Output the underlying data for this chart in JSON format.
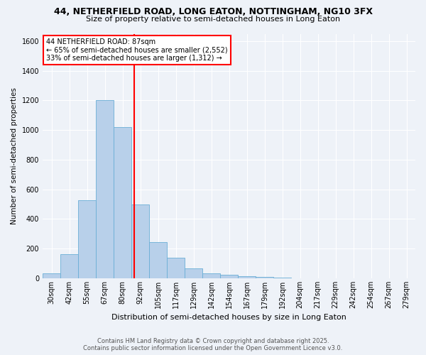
{
  "title_line1": "44, NETHERFIELD ROAD, LONG EATON, NOTTINGHAM, NG10 3FX",
  "title_line2": "Size of property relative to semi-detached houses in Long Eaton",
  "xlabel": "Distribution of semi-detached houses by size in Long Eaton",
  "ylabel": "Number of semi-detached properties",
  "categories": [
    "30sqm",
    "42sqm",
    "55sqm",
    "67sqm",
    "80sqm",
    "92sqm",
    "105sqm",
    "117sqm",
    "129sqm",
    "142sqm",
    "154sqm",
    "167sqm",
    "179sqm",
    "192sqm",
    "204sqm",
    "217sqm",
    "229sqm",
    "242sqm",
    "254sqm",
    "267sqm",
    "279sqm"
  ],
  "values": [
    35,
    165,
    525,
    1200,
    1020,
    500,
    245,
    140,
    65,
    35,
    25,
    15,
    8,
    3,
    1,
    1,
    0,
    0,
    0,
    0,
    0
  ],
  "bar_color": "#b8d0ea",
  "bar_edge_color": "#6aaed6",
  "property_line_x": 4.65,
  "property_line_color": "red",
  "annotation_title": "44 NETHERFIELD ROAD: 87sqm",
  "annotation_line1": "← 65% of semi-detached houses are smaller (2,552)",
  "annotation_line2": "33% of semi-detached houses are larger (1,312) →",
  "annotation_box_color": "white",
  "annotation_box_edge": "red",
  "ylim": [
    0,
    1650
  ],
  "yticks": [
    0,
    200,
    400,
    600,
    800,
    1000,
    1200,
    1400,
    1600
  ],
  "footer_line1": "Contains HM Land Registry data © Crown copyright and database right 2025.",
  "footer_line2": "Contains public sector information licensed under the Open Government Licence v3.0.",
  "background_color": "#eef2f8",
  "grid_color": "#ffffff",
  "title_fontsize": 9,
  "subtitle_fontsize": 8,
  "xlabel_fontsize": 8,
  "ylabel_fontsize": 7.5,
  "tick_fontsize": 7,
  "annotation_fontsize": 7,
  "footer_fontsize": 6
}
